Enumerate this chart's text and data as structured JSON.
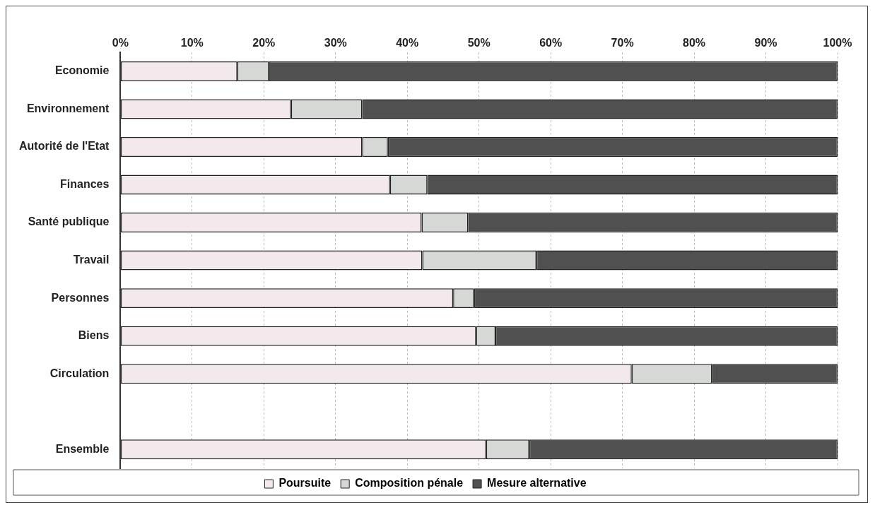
{
  "chart_data": {
    "type": "bar",
    "orientation": "horizontal",
    "stacked": true,
    "categories": [
      "Economie",
      "Environnement",
      "Autorité de l'Etat",
      "Finances",
      "Santé publique",
      "Travail",
      "Personnes",
      "Biens",
      "Circulation",
      null,
      "Ensemble"
    ],
    "series": [
      {
        "name": "Poursuite",
        "color": "#f3e9ec",
        "values": [
          16.3,
          23.8,
          33.7,
          37.6,
          42.0,
          42.1,
          46.4,
          49.6,
          71.3,
          null,
          51.0
        ]
      },
      {
        "name": "Composition pénale",
        "color": "#d6d8d6",
        "values": [
          4.4,
          9.9,
          3.6,
          5.2,
          6.5,
          15.9,
          2.9,
          2.7,
          11.2,
          null,
          6.0
        ]
      },
      {
        "name": "Mesure alternative",
        "color": "#505050",
        "values": [
          79.3,
          66.3,
          62.7,
          57.2,
          51.5,
          42.0,
          50.7,
          47.7,
          17.5,
          null,
          43.0
        ]
      }
    ],
    "xlim": [
      0,
      100
    ],
    "xticks": [
      {
        "value": 0,
        "label": "0%"
      },
      {
        "value": 10,
        "label": "10%"
      },
      {
        "value": 20,
        "label": "20%"
      },
      {
        "value": 30,
        "label": "30%"
      },
      {
        "value": 40,
        "label": "40%"
      },
      {
        "value": 50,
        "label": "50%"
      },
      {
        "value": 60,
        "label": "60%"
      },
      {
        "value": 70,
        "label": "70%"
      },
      {
        "value": 80,
        "label": "80%"
      },
      {
        "value": 90,
        "label": "90%"
      },
      {
        "value": 100,
        "label": "100%"
      }
    ],
    "grid": "x",
    "legend": "bottom"
  }
}
